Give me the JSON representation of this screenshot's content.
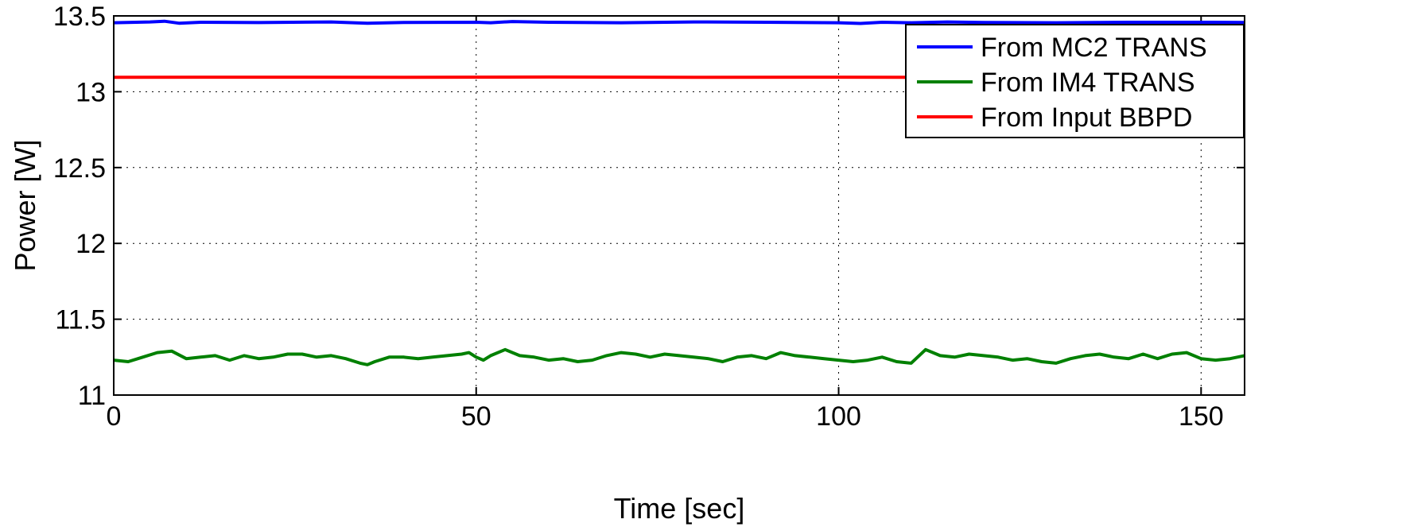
{
  "chart_data": {
    "type": "line",
    "title": "",
    "xlabel": "Time [sec]",
    "ylabel": "Power [W]",
    "xlim": [
      0,
      156
    ],
    "ylim": [
      11,
      13.5
    ],
    "xticks": [
      0,
      50,
      100,
      150
    ],
    "yticks": [
      11,
      11.5,
      12,
      12.5,
      13,
      13.5
    ],
    "xtick_labels": [
      "0",
      "50",
      "100",
      "150"
    ],
    "ytick_labels": [
      "11",
      "11.5",
      "12",
      "12.5",
      "13",
      "13.5"
    ],
    "grid": true,
    "legend_position": "top-right",
    "series": [
      {
        "name": "From MC2 TRANS",
        "color": "#0000ff",
        "x": [
          0,
          5,
          7,
          9,
          12,
          20,
          30,
          35,
          40,
          50,
          52,
          55,
          60,
          70,
          80,
          90,
          100,
          103,
          106,
          110,
          115,
          120,
          130,
          140,
          150,
          156
        ],
        "y": [
          13.455,
          13.46,
          13.465,
          13.452,
          13.458,
          13.456,
          13.46,
          13.452,
          13.457,
          13.458,
          13.455,
          13.463,
          13.458,
          13.455,
          13.46,
          13.458,
          13.455,
          13.45,
          13.458,
          13.455,
          13.46,
          13.457,
          13.455,
          13.458,
          13.458,
          13.457
        ]
      },
      {
        "name": "From IM4 TRANS",
        "color": "#008000",
        "x": [
          0,
          2,
          4,
          6,
          8,
          10,
          12,
          14,
          16,
          18,
          20,
          22,
          24,
          26,
          28,
          30,
          32,
          34,
          35,
          36,
          38,
          40,
          42,
          44,
          46,
          48,
          49,
          50,
          51,
          52,
          54,
          56,
          58,
          60,
          62,
          64,
          66,
          68,
          70,
          72,
          74,
          76,
          78,
          80,
          82,
          84,
          86,
          88,
          90,
          92,
          94,
          96,
          98,
          100,
          102,
          104,
          106,
          108,
          110,
          112,
          114,
          116,
          118,
          120,
          122,
          124,
          126,
          128,
          130,
          132,
          134,
          136,
          138,
          140,
          142,
          144,
          146,
          148,
          150,
          152,
          154,
          156
        ],
        "y": [
          11.23,
          11.22,
          11.25,
          11.28,
          11.29,
          11.24,
          11.25,
          11.26,
          11.23,
          11.26,
          11.24,
          11.25,
          11.27,
          11.27,
          11.25,
          11.26,
          11.24,
          11.21,
          11.2,
          11.22,
          11.25,
          11.25,
          11.24,
          11.25,
          11.26,
          11.27,
          11.28,
          11.25,
          11.23,
          11.26,
          11.3,
          11.26,
          11.25,
          11.23,
          11.24,
          11.22,
          11.23,
          11.26,
          11.28,
          11.27,
          11.25,
          11.27,
          11.26,
          11.25,
          11.24,
          11.22,
          11.25,
          11.26,
          11.24,
          11.28,
          11.26,
          11.25,
          11.24,
          11.23,
          11.22,
          11.23,
          11.25,
          11.22,
          11.21,
          11.3,
          11.26,
          11.25,
          11.27,
          11.26,
          11.25,
          11.23,
          11.24,
          11.22,
          11.21,
          11.24,
          11.26,
          11.27,
          11.25,
          11.24,
          11.27,
          11.24,
          11.27,
          11.28,
          11.24,
          11.23,
          11.24,
          11.26
        ]
      },
      {
        "name": "From Input BBPD",
        "color": "#ff0000",
        "x": [
          0,
          20,
          40,
          60,
          80,
          100,
          120,
          140,
          156
        ],
        "y": [
          13.095,
          13.096,
          13.095,
          13.097,
          13.095,
          13.096,
          13.095,
          13.096,
          13.096
        ]
      }
    ]
  }
}
